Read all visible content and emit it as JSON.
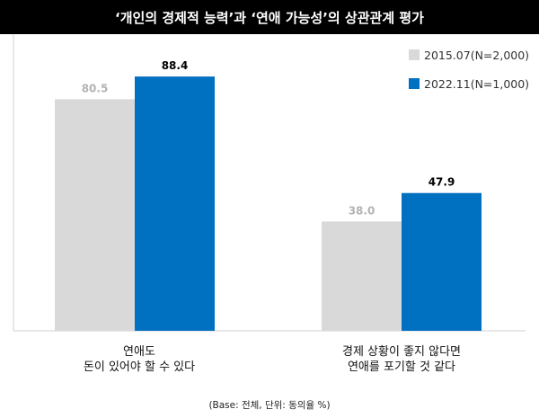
{
  "chart_data": {
    "type": "bar",
    "title": "‘개인의 경제적 능력’과 ‘연애 가능성’의 상관관계 평가",
    "categories": [
      [
        "연애도",
        "돈이 있어야 할 수 있다"
      ],
      [
        "경제 상황이 좋지 않다면",
        "연애를 포기할 것 같다"
      ]
    ],
    "series": [
      {
        "name": "2015.07(N=2,000)",
        "values": [
          80.5,
          38.0
        ],
        "labels": [
          "80.5",
          "38.0"
        ],
        "color": "#d9d9d9",
        "label_color": "#b3b3b3"
      },
      {
        "name": "2022.11(N=1,000)",
        "values": [
          88.4,
          47.9
        ],
        "labels": [
          "88.4",
          "47.9"
        ],
        "color": "#0070c0",
        "label_color": "#000000"
      }
    ],
    "ylim": [
      0,
      100
    ],
    "grid": false,
    "legend_position": "top-right",
    "footnote": "(Base: 전체, 단위: 동의율 %)"
  }
}
